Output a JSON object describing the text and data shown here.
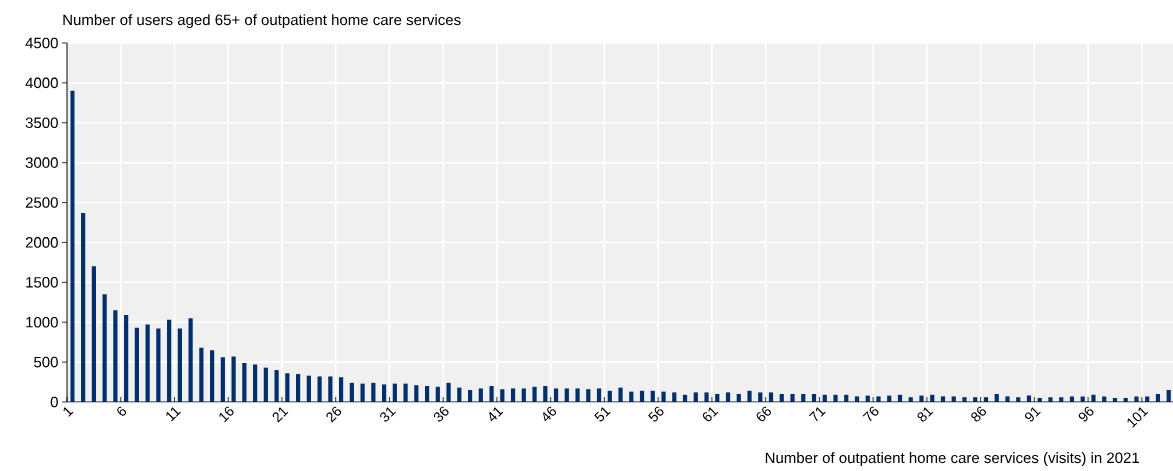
{
  "chart_data": {
    "type": "bar",
    "title": "Number of users aged 65+ of outpatient home care services",
    "xlabel": "Number of outpatient home care services (visits) in 2021",
    "categories": [
      "1",
      null,
      null,
      null,
      null,
      "6",
      null,
      null,
      null,
      null,
      "11",
      null,
      null,
      null,
      null,
      "16",
      null,
      null,
      null,
      null,
      "21",
      null,
      null,
      null,
      null,
      "26",
      null,
      null,
      null,
      null,
      "31",
      null,
      null,
      null,
      null,
      "36",
      null,
      null,
      null,
      null,
      "41",
      null,
      null,
      null,
      null,
      "46",
      null,
      null,
      null,
      null,
      "51",
      null,
      null,
      null,
      null,
      "56",
      null,
      null,
      null,
      null,
      "61",
      null,
      null,
      null,
      null,
      "66",
      null,
      null,
      null,
      null,
      "71",
      null,
      null,
      null,
      null,
      "76",
      null,
      null,
      null,
      null,
      "81",
      null,
      null,
      null,
      null,
      "86",
      null,
      null,
      null,
      null,
      "91",
      null,
      null,
      null,
      null,
      "96",
      null,
      null,
      null,
      null,
      "101",
      null,
      null
    ],
    "values": [
      3900,
      2370,
      1700,
      1350,
      1150,
      1090,
      930,
      970,
      920,
      1030,
      920,
      1050,
      680,
      650,
      560,
      570,
      490,
      470,
      430,
      400,
      360,
      350,
      330,
      320,
      320,
      310,
      240,
      230,
      240,
      220,
      230,
      230,
      210,
      200,
      190,
      240,
      180,
      150,
      170,
      200,
      160,
      170,
      170,
      190,
      200,
      170,
      170,
      170,
      160,
      170,
      140,
      180,
      130,
      140,
      140,
      130,
      120,
      90,
      120,
      120,
      100,
      120,
      100,
      140,
      120,
      120,
      100,
      100,
      100,
      100,
      90,
      90,
      90,
      70,
      80,
      70,
      80,
      90,
      60,
      80,
      90,
      70,
      70,
      60,
      60,
      60,
      100,
      70,
      60,
      80,
      50,
      60,
      60,
      70,
      70,
      90,
      70,
      50,
      50,
      70,
      70,
      100,
      150
    ],
    "color": "#002f6c",
    "ylim": [
      0,
      4500
    ],
    "yticks": [
      0,
      500,
      1000,
      1500,
      2000,
      2500,
      3000,
      3500,
      4000,
      4500
    ],
    "grid": true
  }
}
